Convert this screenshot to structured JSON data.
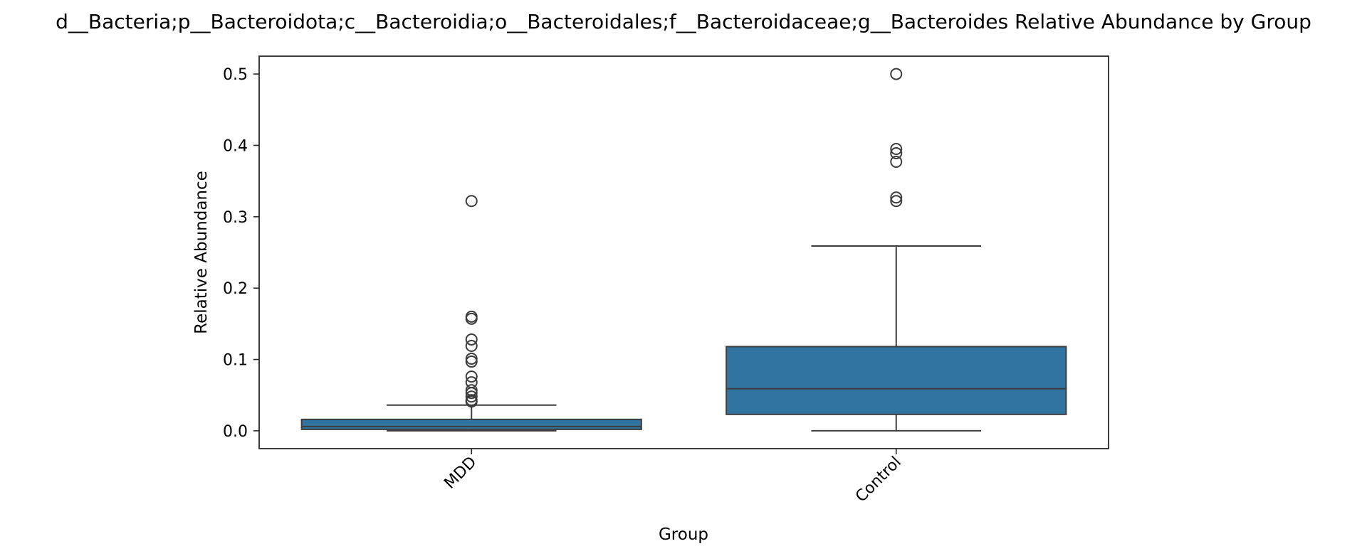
{
  "chart_data": {
    "type": "box",
    "title": "d__Bacteria;p__Bacteroidota;c__Bacteroidia;o__Bacteroidales;f__Bacteroidaceae;g__Bacteroides Relative Abundance by Group",
    "xlabel": "Group",
    "ylabel": "Relative Abundance",
    "categories": [
      "MDD",
      "Control"
    ],
    "ylim": [
      -0.025,
      0.525
    ],
    "yticks": [
      "0.0",
      "0.1",
      "0.2",
      "0.3",
      "0.4",
      "0.5"
    ],
    "grid": false,
    "box_color": "#3274a1",
    "line_color": "#3d3d3d",
    "boxes": [
      {
        "category": "MDD",
        "whisker_low": 0.0,
        "q1": 0.002,
        "median": 0.006,
        "q3": 0.016,
        "whisker_high": 0.036,
        "outliers": [
          0.322,
          0.16,
          0.157,
          0.128,
          0.119,
          0.101,
          0.097,
          0.076,
          0.068,
          0.057,
          0.053,
          0.048,
          0.043,
          0.041
        ]
      },
      {
        "category": "Control",
        "whisker_low": 0.0,
        "q1": 0.023,
        "median": 0.059,
        "q3": 0.118,
        "whisker_high": 0.259,
        "outliers": [
          0.5,
          0.395,
          0.389,
          0.377,
          0.327,
          0.322
        ]
      }
    ]
  }
}
